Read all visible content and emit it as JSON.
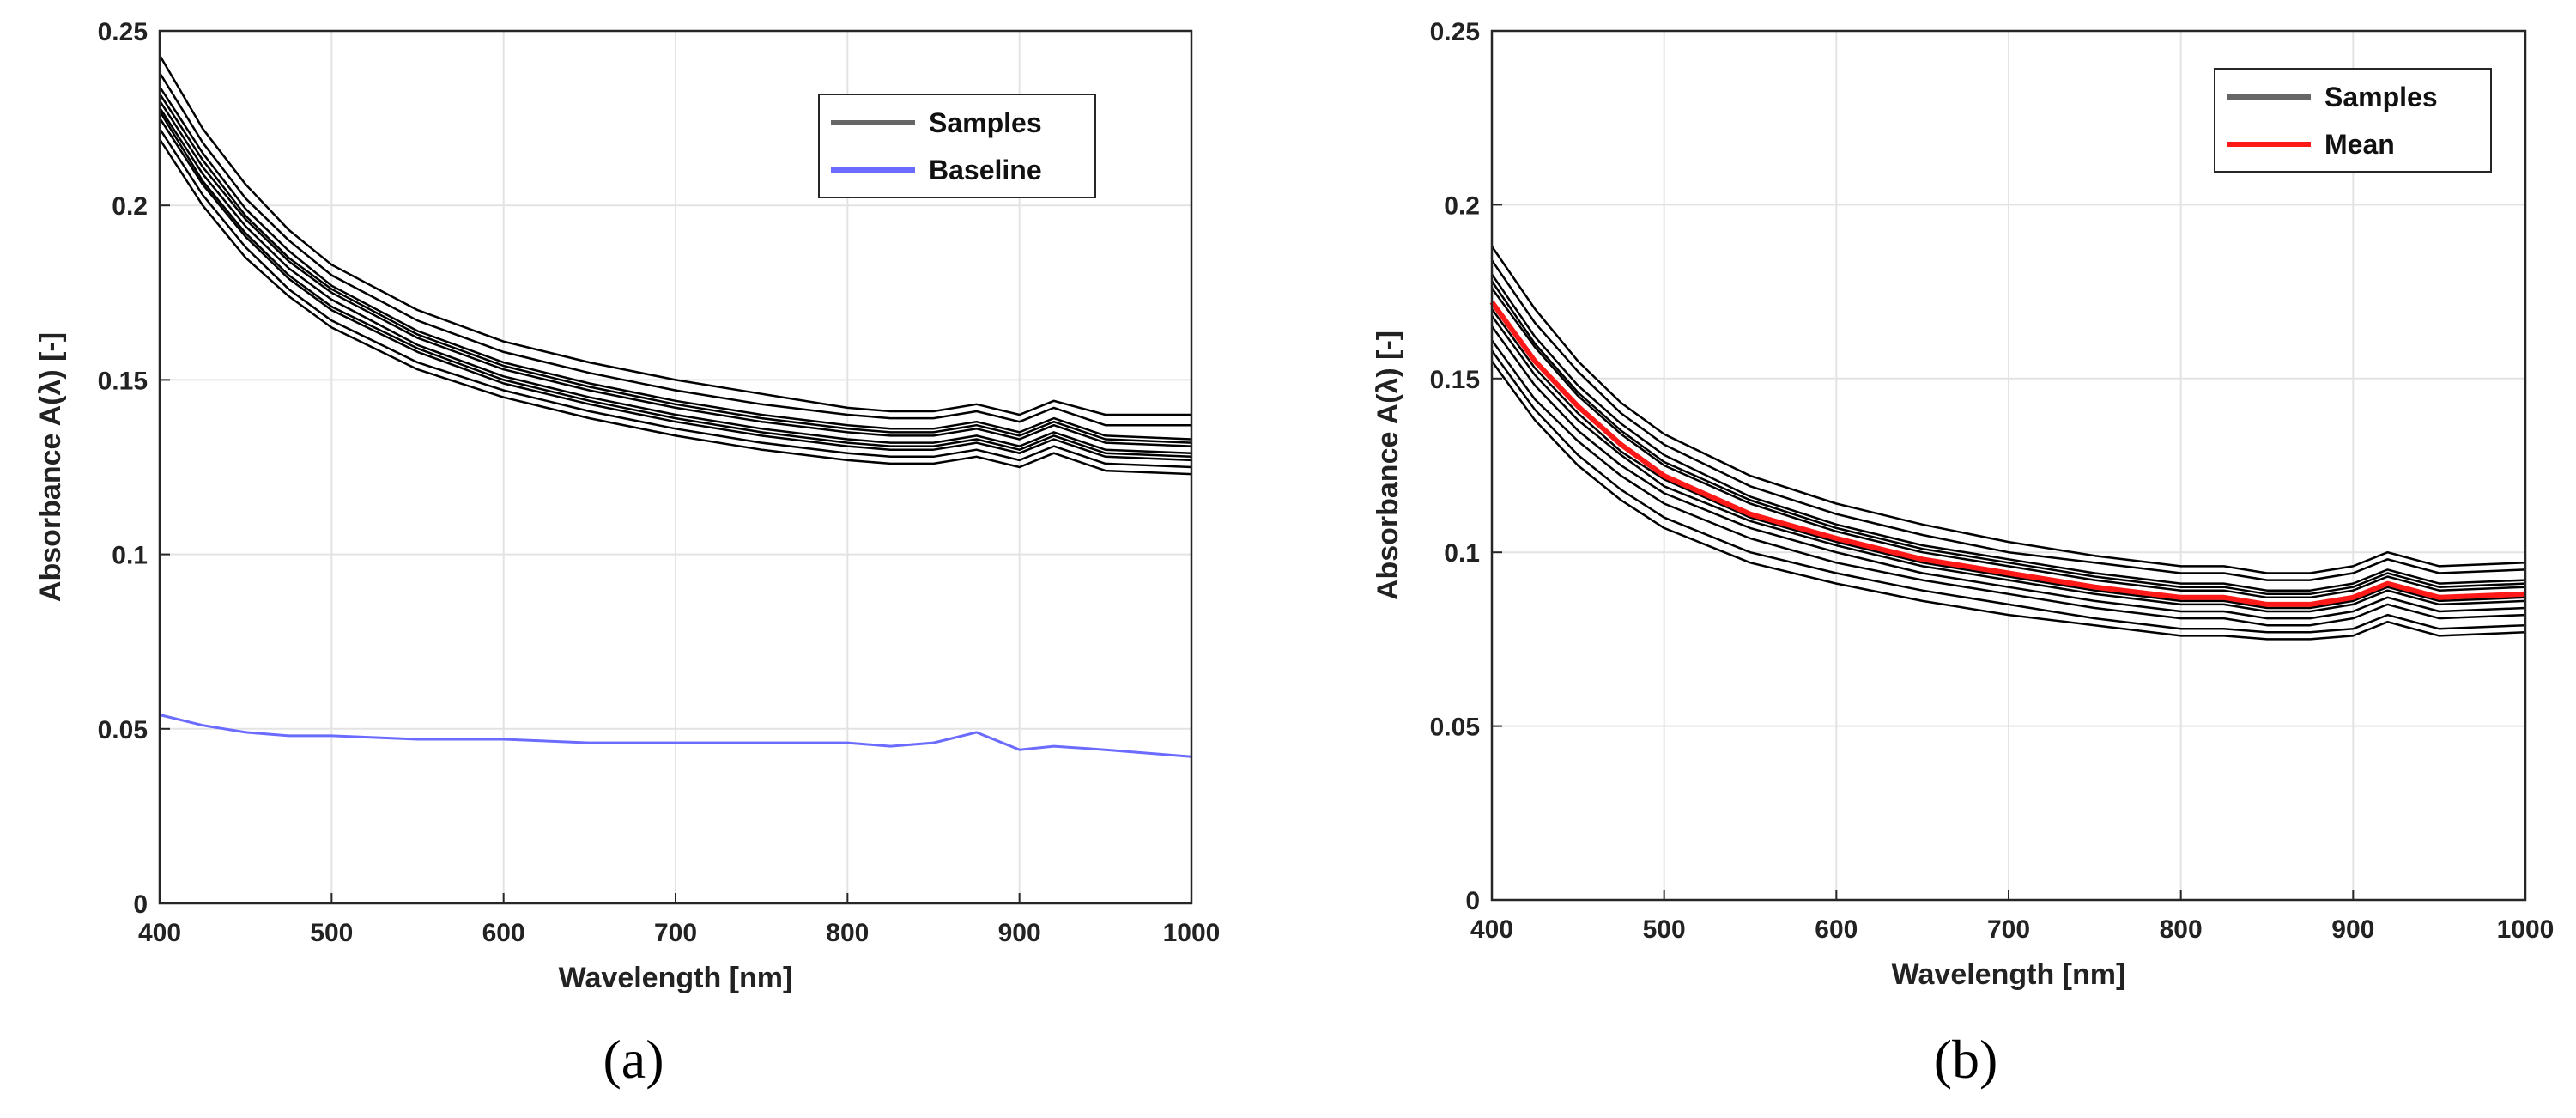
{
  "chart_data": [
    {
      "type": "line",
      "panel_label": "(a)",
      "xlabel": "Wavelength [nm]",
      "ylabel": "Absorbance A(λ) [-]",
      "xlim": [
        400,
        1000
      ],
      "ylim": [
        0,
        0.25
      ],
      "x_ticks": [
        400,
        500,
        600,
        700,
        800,
        900,
        1000
      ],
      "y_ticks": [
        0,
        0.05,
        0.1,
        0.15,
        0.2,
        0.25
      ],
      "grid": true,
      "legend": {
        "placement": "top-right",
        "entries": [
          {
            "label": "Samples",
            "color": "#666666"
          },
          {
            "label": "Baseline",
            "color": "#6b6bff"
          }
        ]
      },
      "x": [
        400,
        425,
        450,
        475,
        500,
        550,
        600,
        650,
        700,
        750,
        800,
        825,
        850,
        875,
        900,
        920,
        950,
        1000
      ],
      "sample_series": [
        [
          0.243,
          0.222,
          0.206,
          0.193,
          0.183,
          0.17,
          0.161,
          0.155,
          0.15,
          0.146,
          0.142,
          0.141,
          0.141,
          0.143,
          0.14,
          0.144,
          0.14,
          0.14
        ],
        [
          0.238,
          0.218,
          0.202,
          0.19,
          0.18,
          0.167,
          0.158,
          0.152,
          0.147,
          0.143,
          0.14,
          0.139,
          0.139,
          0.141,
          0.138,
          0.142,
          0.137,
          0.137
        ],
        [
          0.234,
          0.215,
          0.199,
          0.187,
          0.177,
          0.164,
          0.155,
          0.149,
          0.144,
          0.14,
          0.137,
          0.136,
          0.136,
          0.138,
          0.135,
          0.139,
          0.134,
          0.133
        ],
        [
          0.23,
          0.211,
          0.196,
          0.184,
          0.175,
          0.162,
          0.153,
          0.147,
          0.142,
          0.138,
          0.135,
          0.134,
          0.134,
          0.136,
          0.133,
          0.137,
          0.132,
          0.131
        ],
        [
          0.228,
          0.209,
          0.194,
          0.182,
          0.173,
          0.16,
          0.151,
          0.145,
          0.14,
          0.136,
          0.133,
          0.132,
          0.132,
          0.134,
          0.131,
          0.135,
          0.13,
          0.129
        ],
        [
          0.225,
          0.206,
          0.191,
          0.179,
          0.17,
          0.158,
          0.149,
          0.143,
          0.138,
          0.134,
          0.131,
          0.13,
          0.13,
          0.132,
          0.129,
          0.133,
          0.128,
          0.127
        ],
        [
          0.222,
          0.203,
          0.188,
          0.176,
          0.167,
          0.155,
          0.147,
          0.141,
          0.136,
          0.132,
          0.129,
          0.128,
          0.128,
          0.13,
          0.127,
          0.131,
          0.126,
          0.125
        ],
        [
          0.219,
          0.2,
          0.185,
          0.174,
          0.165,
          0.153,
          0.145,
          0.139,
          0.134,
          0.13,
          0.127,
          0.126,
          0.126,
          0.128,
          0.125,
          0.129,
          0.124,
          0.123
        ],
        [
          0.227,
          0.207,
          0.192,
          0.18,
          0.171,
          0.159,
          0.15,
          0.144,
          0.139,
          0.135,
          0.132,
          0.131,
          0.131,
          0.133,
          0.13,
          0.134,
          0.129,
          0.128
        ],
        [
          0.232,
          0.213,
          0.197,
          0.185,
          0.176,
          0.163,
          0.154,
          0.148,
          0.143,
          0.139,
          0.136,
          0.135,
          0.135,
          0.137,
          0.134,
          0.138,
          0.133,
          0.132
        ]
      ],
      "baseline": [
        0.054,
        0.051,
        0.049,
        0.048,
        0.048,
        0.047,
        0.047,
        0.046,
        0.046,
        0.046,
        0.046,
        0.045,
        0.046,
        0.049,
        0.044,
        0.045,
        0.044,
        0.042
      ]
    },
    {
      "type": "line",
      "panel_label": "(b)",
      "xlabel": "Wavelength [nm]",
      "ylabel": "Absorbance A(λ) [-]",
      "xlim": [
        400,
        1000
      ],
      "ylim": [
        0,
        0.25
      ],
      "x_ticks": [
        400,
        500,
        600,
        700,
        800,
        900,
        1000
      ],
      "y_ticks": [
        0,
        0.05,
        0.1,
        0.15,
        0.2,
        0.25
      ],
      "grid": true,
      "legend": {
        "placement": "top-right",
        "entries": [
          {
            "label": "Samples",
            "color": "#666666"
          },
          {
            "label": "Mean",
            "color": "#ff1a1a"
          }
        ]
      },
      "x": [
        400,
        425,
        450,
        475,
        500,
        550,
        600,
        650,
        700,
        750,
        800,
        825,
        850,
        875,
        900,
        920,
        950,
        1000
      ],
      "sample_series": [
        [
          0.188,
          0.17,
          0.155,
          0.143,
          0.134,
          0.122,
          0.114,
          0.108,
          0.103,
          0.099,
          0.096,
          0.096,
          0.094,
          0.094,
          0.096,
          0.1,
          0.096,
          0.097
        ],
        [
          0.184,
          0.166,
          0.152,
          0.14,
          0.131,
          0.119,
          0.111,
          0.105,
          0.1,
          0.097,
          0.094,
          0.094,
          0.092,
          0.092,
          0.094,
          0.098,
          0.094,
          0.095
        ],
        [
          0.18,
          0.162,
          0.148,
          0.137,
          0.128,
          0.116,
          0.108,
          0.102,
          0.098,
          0.094,
          0.091,
          0.091,
          0.089,
          0.089,
          0.091,
          0.095,
          0.091,
          0.092
        ],
        [
          0.176,
          0.159,
          0.145,
          0.134,
          0.125,
          0.114,
          0.106,
          0.1,
          0.096,
          0.092,
          0.089,
          0.089,
          0.087,
          0.087,
          0.089,
          0.093,
          0.089,
          0.09
        ],
        [
          0.172,
          0.155,
          0.142,
          0.131,
          0.122,
          0.111,
          0.104,
          0.098,
          0.094,
          0.09,
          0.087,
          0.087,
          0.085,
          0.085,
          0.087,
          0.091,
          0.087,
          0.088
        ],
        [
          0.168,
          0.151,
          0.138,
          0.128,
          0.119,
          0.109,
          0.102,
          0.096,
          0.092,
          0.088,
          0.085,
          0.085,
          0.083,
          0.083,
          0.085,
          0.089,
          0.085,
          0.086
        ],
        [
          0.165,
          0.148,
          0.135,
          0.125,
          0.117,
          0.107,
          0.1,
          0.094,
          0.09,
          0.086,
          0.083,
          0.083,
          0.081,
          0.081,
          0.083,
          0.087,
          0.083,
          0.084
        ],
        [
          0.161,
          0.144,
          0.132,
          0.122,
          0.114,
          0.104,
          0.097,
          0.092,
          0.088,
          0.084,
          0.081,
          0.081,
          0.079,
          0.079,
          0.081,
          0.085,
          0.081,
          0.082
        ],
        [
          0.158,
          0.141,
          0.128,
          0.118,
          0.11,
          0.1,
          0.094,
          0.089,
          0.085,
          0.081,
          0.078,
          0.078,
          0.077,
          0.077,
          0.078,
          0.082,
          0.078,
          0.079
        ],
        [
          0.155,
          0.138,
          0.125,
          0.115,
          0.107,
          0.097,
          0.091,
          0.086,
          0.082,
          0.079,
          0.076,
          0.076,
          0.075,
          0.075,
          0.076,
          0.08,
          0.076,
          0.077
        ],
        [
          0.178,
          0.16,
          0.146,
          0.135,
          0.126,
          0.115,
          0.107,
          0.101,
          0.097,
          0.093,
          0.09,
          0.09,
          0.088,
          0.088,
          0.09,
          0.094,
          0.09,
          0.091
        ],
        [
          0.17,
          0.153,
          0.14,
          0.129,
          0.121,
          0.11,
          0.103,
          0.097,
          0.093,
          0.089,
          0.086,
          0.086,
          0.084,
          0.084,
          0.086,
          0.09,
          0.086,
          0.087
        ]
      ],
      "mean": [
        0.172,
        0.155,
        0.142,
        0.131,
        0.122,
        0.111,
        0.104,
        0.098,
        0.094,
        0.09,
        0.087,
        0.087,
        0.085,
        0.085,
        0.087,
        0.091,
        0.087,
        0.088
      ]
    }
  ]
}
